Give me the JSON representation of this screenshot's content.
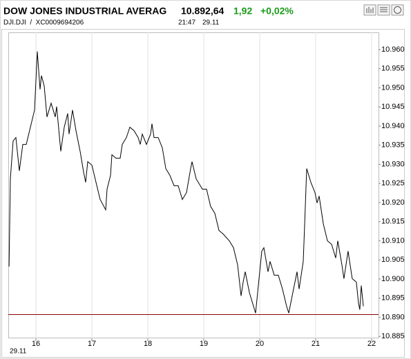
{
  "chart_data": {
    "type": "line",
    "title": "DOW JONES INDUSTRIAL AVERAG",
    "price": "10.892,64",
    "change": "1,92",
    "change_pct": "+0,02%",
    "symbol": "DJI.DJI  /  XC0009694206",
    "time": "21:47",
    "date": "29.11",
    "x_sublabel": "29.11",
    "x": [
      15.519,
      15.543,
      15.593,
      15.642,
      15.704,
      15.765,
      15.827,
      15.901,
      15.975,
      16.025,
      16.074,
      16.099,
      16.148,
      16.198,
      16.272,
      16.346,
      16.37,
      16.444,
      16.506,
      16.568,
      16.593,
      16.654,
      16.716,
      16.79,
      16.852,
      16.889,
      16.926,
      17.0,
      17.074,
      17.148,
      17.247,
      17.272,
      17.333,
      17.358,
      17.432,
      17.506,
      17.543,
      17.617,
      17.679,
      17.753,
      17.827,
      17.864,
      17.901,
      17.975,
      18.049,
      18.074,
      18.111,
      18.185,
      18.259,
      18.321,
      18.395,
      18.469,
      18.543,
      18.617,
      18.691,
      18.765,
      18.79,
      18.864,
      18.975,
      19.049,
      19.123,
      19.198,
      19.272,
      19.346,
      19.457,
      19.531,
      19.605,
      19.667,
      19.704,
      19.741,
      19.815,
      19.889,
      19.926,
      19.963,
      20.037,
      20.074,
      20.148,
      20.185,
      20.259,
      20.333,
      20.407,
      20.481,
      20.519,
      20.556,
      20.63,
      20.667,
      20.704,
      20.778,
      20.802,
      20.84,
      20.914,
      20.988,
      21.025,
      21.062,
      21.136,
      21.21,
      21.284,
      21.358,
      21.395,
      21.469,
      21.506,
      21.58,
      21.654,
      21.728,
      21.765,
      21.79,
      21.815,
      21.852
    ],
    "series": [
      {
        "color": "#000000",
        "values": [
          10.9033,
          10.9262,
          10.9361,
          10.937,
          10.9283,
          10.9352,
          10.9352,
          10.9397,
          10.9442,
          10.9595,
          10.9496,
          10.9532,
          10.9505,
          10.9424,
          10.946,
          10.9424,
          10.9451,
          10.9334,
          10.9397,
          10.9433,
          10.9379,
          10.9442,
          10.9388,
          10.9334,
          10.928,
          10.9253,
          10.9307,
          10.9298,
          10.9253,
          10.9208,
          10.9181,
          10.9235,
          10.9271,
          10.9325,
          10.9316,
          10.9316,
          10.9352,
          10.937,
          10.9397,
          10.9388,
          10.937,
          10.9352,
          10.9379,
          10.9352,
          10.9379,
          10.9406,
          10.937,
          10.937,
          10.9343,
          10.9289,
          10.9271,
          10.9244,
          10.9244,
          10.9208,
          10.9226,
          10.9289,
          10.9307,
          10.9262,
          10.9235,
          10.9235,
          10.919,
          10.9172,
          10.9127,
          10.9118,
          10.91,
          10.9082,
          10.9037,
          10.8956,
          10.8992,
          10.9019,
          10.8965,
          10.8929,
          10.8911,
          10.8965,
          10.9073,
          10.9082,
          10.9019,
          10.9046,
          10.901,
          10.901,
          10.8974,
          10.8929,
          10.8911,
          10.8938,
          10.8992,
          10.9019,
          10.8974,
          10.9046,
          10.9136,
          10.9289,
          10.9253,
          10.9226,
          10.9199,
          10.9217,
          10.9145,
          10.91,
          10.9091,
          10.9055,
          10.91,
          10.9037,
          10.9001,
          10.9073,
          10.9001,
          10.8992,
          10.8938,
          10.892,
          10.8983,
          10.8929
        ]
      }
    ],
    "reference_line": {
      "value": 10.89072,
      "color": "#8b0000"
    },
    "xlim": [
      15.506,
      22.124
    ],
    "xticks": [
      16,
      17,
      18,
      19,
      20,
      21,
      22
    ],
    "ylim": [
      10.8845,
      10.9645
    ],
    "yticks": [
      {
        "value": 10.885,
        "label": "10.885"
      },
      {
        "value": 10.89,
        "label": "10.890"
      },
      {
        "value": 10.895,
        "label": "10.895"
      },
      {
        "value": 10.9,
        "label": "10.900"
      },
      {
        "value": 10.905,
        "label": "10.905"
      },
      {
        "value": 10.91,
        "label": "10.910"
      },
      {
        "value": 10.915,
        "label": "10.915"
      },
      {
        "value": 10.92,
        "label": "10.920"
      },
      {
        "value": 10.925,
        "label": "10.925"
      },
      {
        "value": 10.93,
        "label": "10.930"
      },
      {
        "value": 10.935,
        "label": "10.935"
      },
      {
        "value": 10.94,
        "label": "10.940"
      },
      {
        "value": 10.945,
        "label": "10.945"
      },
      {
        "value": 10.95,
        "label": "10.950"
      },
      {
        "value": 10.955,
        "label": "10.955"
      },
      {
        "value": 10.96,
        "label": "10.960"
      }
    ],
    "grid": "x",
    "change_color": "#1a9a1a"
  }
}
